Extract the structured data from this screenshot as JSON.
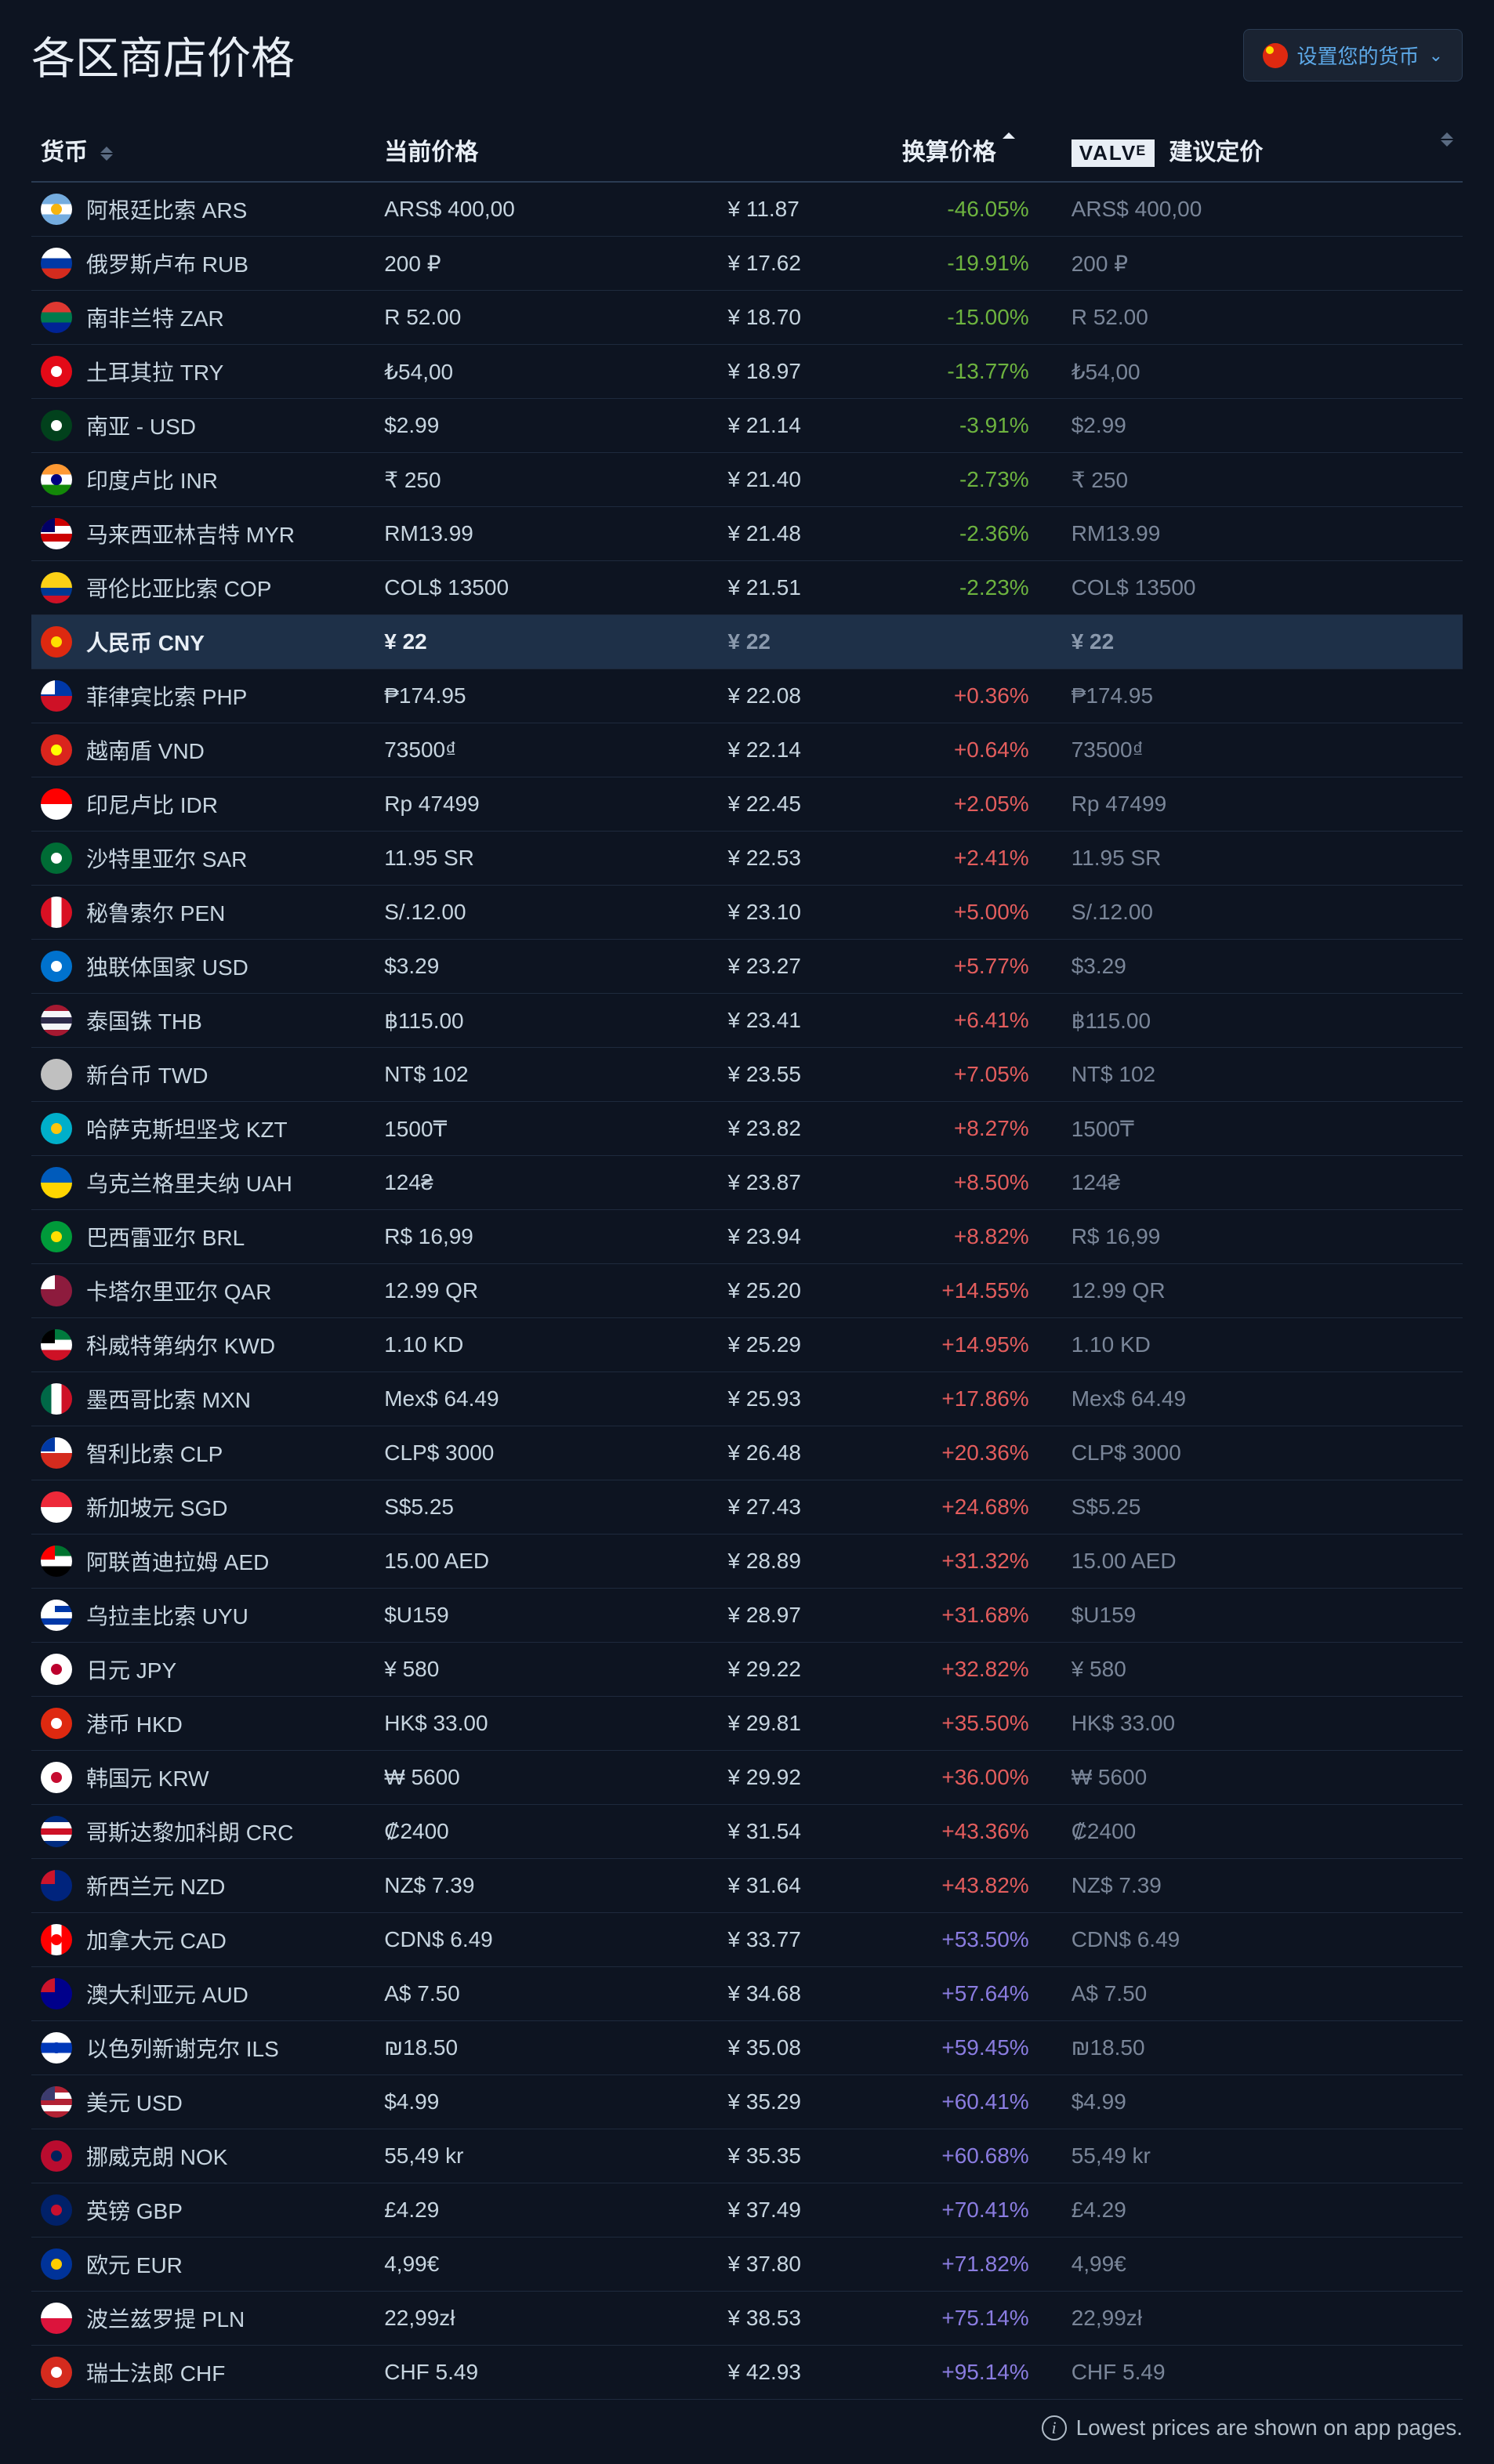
{
  "title": "各区商店价格",
  "set_currency_label": "设置您的货币",
  "set_currency_flag_colors": [
    "#de2910",
    "#ffde00"
  ],
  "valve_brand": "VALVᴱ",
  "columns": {
    "currency": "货币",
    "current_price": "当前价格",
    "converted_price": "换算价格",
    "suggested_price": "建议定价"
  },
  "footer_note": "Lowest prices are shown on app pages.",
  "highlighted_currency": "CNY",
  "rows": [
    {
      "code": "ARS",
      "name": "阿根廷比索 ARS",
      "flag": [
        "#74acdf",
        "#ffffff",
        "#74acdf"
      ],
      "flag_type": "hstripes",
      "flag_dot": "#f6b40e",
      "price": "ARS$ 400,00",
      "converted": "¥ 11.87",
      "pct": "-46.05%",
      "pct_class": "pct-negative",
      "suggested": "ARS$ 400,00"
    },
    {
      "code": "RUB",
      "name": "俄罗斯卢布 RUB",
      "flag": [
        "#ffffff",
        "#0039a6",
        "#d52b1e"
      ],
      "flag_type": "hstripes",
      "price": "200 ₽",
      "converted": "¥ 17.62",
      "pct": "-19.91%",
      "pct_class": "pct-negative",
      "suggested": "200 ₽"
    },
    {
      "code": "ZAR",
      "name": "南非兰特 ZAR",
      "flag": [
        "#de3831",
        "#007a4d",
        "#002395"
      ],
      "flag_type": "hstripes",
      "price": "R 52.00",
      "converted": "¥ 18.70",
      "pct": "-15.00%",
      "pct_class": "pct-negative",
      "suggested": "R 52.00"
    },
    {
      "code": "TRY",
      "name": "土耳其拉 TRY",
      "flag": [
        "#e30a17"
      ],
      "flag_type": "solid",
      "flag_dot": "#ffffff",
      "price": "₺54,00",
      "converted": "¥ 18.97",
      "pct": "-13.77%",
      "pct_class": "pct-negative",
      "suggested": "₺54,00"
    },
    {
      "code": "SASIA",
      "name": "南亚 - USD",
      "flag": [
        "#01411c"
      ],
      "flag_type": "solid",
      "flag_dot": "#ffffff",
      "price": "$2.99",
      "converted": "¥ 21.14",
      "pct": "-3.91%",
      "pct_class": "pct-negative",
      "suggested": "$2.99"
    },
    {
      "code": "INR",
      "name": "印度卢比 INR",
      "flag": [
        "#ff9933",
        "#ffffff",
        "#138808"
      ],
      "flag_type": "hstripes",
      "flag_dot": "#000080",
      "price": "₹ 250",
      "converted": "¥ 21.40",
      "pct": "-2.73%",
      "pct_class": "pct-negative",
      "suggested": "₹ 250"
    },
    {
      "code": "MYR",
      "name": "马来西亚林吉特 MYR",
      "flag": [
        "#cc0001",
        "#ffffff",
        "#cc0001",
        "#ffffff"
      ],
      "flag_type": "hstripes",
      "flag_corner": "#010066",
      "price": "RM13.99",
      "converted": "¥ 21.48",
      "pct": "-2.36%",
      "pct_class": "pct-negative",
      "suggested": "RM13.99"
    },
    {
      "code": "COP",
      "name": "哥伦比亚比索 COP",
      "flag": [
        "#fcd116",
        "#fcd116",
        "#003893",
        "#ce1126"
      ],
      "flag_type": "hstripes",
      "price": "COL$ 13500",
      "converted": "¥ 21.51",
      "pct": "-2.23%",
      "pct_class": "pct-negative",
      "suggested": "COL$ 13500"
    },
    {
      "code": "CNY",
      "name": "人民币 CNY",
      "flag": [
        "#de2910"
      ],
      "flag_type": "solid",
      "flag_dot": "#ffde00",
      "price": "¥ 22",
      "converted": "¥ 22",
      "pct": "",
      "pct_class": "",
      "suggested": "¥ 22",
      "highlighted": true
    },
    {
      "code": "PHP",
      "name": "菲律宾比索 PHP",
      "flag": [
        "#0038a8",
        "#ce1126"
      ],
      "flag_type": "hstripes",
      "flag_corner": "#ffffff",
      "price": "₱174.95",
      "converted": "¥ 22.08",
      "pct": "+0.36%",
      "pct_class": "pct-positive-low",
      "suggested": "₱174.95"
    },
    {
      "code": "VND",
      "name": "越南盾 VND",
      "flag": [
        "#da251d"
      ],
      "flag_type": "solid",
      "flag_dot": "#ffff00",
      "price": "73500₫",
      "converted": "¥ 22.14",
      "pct": "+0.64%",
      "pct_class": "pct-positive-low",
      "suggested": "73500₫"
    },
    {
      "code": "IDR",
      "name": "印尼卢比 IDR",
      "flag": [
        "#ff0000",
        "#ffffff"
      ],
      "flag_type": "hstripes",
      "price": "Rp 47499",
      "converted": "¥ 22.45",
      "pct": "+2.05%",
      "pct_class": "pct-positive-low",
      "suggested": "Rp 47499"
    },
    {
      "code": "SAR",
      "name": "沙特里亚尔 SAR",
      "flag": [
        "#006c35"
      ],
      "flag_type": "solid",
      "flag_dot": "#ffffff",
      "price": "11.95 SR",
      "converted": "¥ 22.53",
      "pct": "+2.41%",
      "pct_class": "pct-positive-low",
      "suggested": "11.95 SR"
    },
    {
      "code": "PEN",
      "name": "秘鲁索尔 PEN",
      "flag": [
        "#d91023",
        "#ffffff",
        "#d91023"
      ],
      "flag_type": "vstripes",
      "price": "S/.12.00",
      "converted": "¥ 23.10",
      "pct": "+5.00%",
      "pct_class": "pct-positive-low",
      "suggested": "S/.12.00"
    },
    {
      "code": "CIS",
      "name": "独联体国家 USD",
      "flag": [
        "#0072ce"
      ],
      "flag_type": "solid",
      "flag_dot": "#ffffff",
      "price": "$3.29",
      "converted": "¥ 23.27",
      "pct": "+5.77%",
      "pct_class": "pct-positive-low",
      "suggested": "$3.29"
    },
    {
      "code": "THB",
      "name": "泰国铢 THB",
      "flag": [
        "#a51931",
        "#f4f5f8",
        "#2d2a4a",
        "#f4f5f8",
        "#a51931"
      ],
      "flag_type": "hstripes",
      "price": "฿115.00",
      "converted": "¥ 23.41",
      "pct": "+6.41%",
      "pct_class": "pct-positive-low",
      "suggested": "฿115.00"
    },
    {
      "code": "TWD",
      "name": "新台币 TWD",
      "flag": [
        "#c0c0c0"
      ],
      "flag_type": "solid",
      "price": "NT$ 102",
      "converted": "¥ 23.55",
      "pct": "+7.05%",
      "pct_class": "pct-positive-low",
      "suggested": "NT$ 102"
    },
    {
      "code": "KZT",
      "name": "哈萨克斯坦坚戈 KZT",
      "flag": [
        "#00afca"
      ],
      "flag_type": "solid",
      "flag_dot": "#fec50c",
      "price": "1500₸",
      "converted": "¥ 23.82",
      "pct": "+8.27%",
      "pct_class": "pct-positive-low",
      "suggested": "1500₸"
    },
    {
      "code": "UAH",
      "name": "乌克兰格里夫纳 UAH",
      "flag": [
        "#005bbb",
        "#ffd500"
      ],
      "flag_type": "hstripes",
      "price": "124₴",
      "converted": "¥ 23.87",
      "pct": "+8.50%",
      "pct_class": "pct-positive-low",
      "suggested": "124₴"
    },
    {
      "code": "BRL",
      "name": "巴西雷亚尔 BRL",
      "flag": [
        "#009b3a"
      ],
      "flag_type": "solid",
      "flag_dot": "#fedf00",
      "price": "R$ 16,99",
      "converted": "¥ 23.94",
      "pct": "+8.82%",
      "pct_class": "pct-positive-low",
      "suggested": "R$ 16,99"
    },
    {
      "code": "QAR",
      "name": "卡塔尔里亚尔 QAR",
      "flag": [
        "#8d1b3d"
      ],
      "flag_type": "solid",
      "flag_corner": "#ffffff",
      "price": "12.99 QR",
      "converted": "¥ 25.20",
      "pct": "+14.55%",
      "pct_class": "pct-positive-low",
      "suggested": "12.99 QR"
    },
    {
      "code": "KWD",
      "name": "科威特第纳尔 KWD",
      "flag": [
        "#007a3d",
        "#ffffff",
        "#ce1126"
      ],
      "flag_type": "hstripes",
      "flag_corner": "#000000",
      "price": "1.10 KD",
      "converted": "¥ 25.29",
      "pct": "+14.95%",
      "pct_class": "pct-positive-low",
      "suggested": "1.10 KD"
    },
    {
      "code": "MXN",
      "name": "墨西哥比索 MXN",
      "flag": [
        "#006847",
        "#ffffff",
        "#ce1126"
      ],
      "flag_type": "vstripes",
      "price": "Mex$ 64.49",
      "converted": "¥ 25.93",
      "pct": "+17.86%",
      "pct_class": "pct-positive-low",
      "suggested": "Mex$ 64.49"
    },
    {
      "code": "CLP",
      "name": "智利比索 CLP",
      "flag": [
        "#ffffff",
        "#d52b1e"
      ],
      "flag_type": "hstripes",
      "flag_corner": "#0039a6",
      "price": "CLP$ 3000",
      "converted": "¥ 26.48",
      "pct": "+20.36%",
      "pct_class": "pct-positive-low",
      "suggested": "CLP$ 3000"
    },
    {
      "code": "SGD",
      "name": "新加坡元 SGD",
      "flag": [
        "#ed2939",
        "#ffffff"
      ],
      "flag_type": "hstripes",
      "price": "S$5.25",
      "converted": "¥ 27.43",
      "pct": "+24.68%",
      "pct_class": "pct-positive-low",
      "suggested": "S$5.25"
    },
    {
      "code": "AED",
      "name": "阿联酋迪拉姆 AED",
      "flag": [
        "#00732f",
        "#ffffff",
        "#000000"
      ],
      "flag_type": "hstripes",
      "flag_corner": "#ff0000",
      "price": "15.00 AED",
      "converted": "¥ 28.89",
      "pct": "+31.32%",
      "pct_class": "pct-positive-low",
      "suggested": "15.00 AED"
    },
    {
      "code": "UYU",
      "name": "乌拉圭比索 UYU",
      "flag": [
        "#ffffff",
        "#0038a8",
        "#ffffff",
        "#0038a8",
        "#ffffff"
      ],
      "flag_type": "hstripes",
      "flag_corner": "#ffffff",
      "price": "$U159",
      "converted": "¥ 28.97",
      "pct": "+31.68%",
      "pct_class": "pct-positive-low",
      "suggested": "$U159"
    },
    {
      "code": "JPY",
      "name": "日元 JPY",
      "flag": [
        "#ffffff"
      ],
      "flag_type": "solid",
      "flag_dot": "#bc002d",
      "price": "¥ 580",
      "converted": "¥ 29.22",
      "pct": "+32.82%",
      "pct_class": "pct-positive-low",
      "suggested": "¥ 580"
    },
    {
      "code": "HKD",
      "name": "港币 HKD",
      "flag": [
        "#de2910"
      ],
      "flag_type": "solid",
      "flag_dot": "#ffffff",
      "price": "HK$ 33.00",
      "converted": "¥ 29.81",
      "pct": "+35.50%",
      "pct_class": "pct-positive-low",
      "suggested": "HK$ 33.00"
    },
    {
      "code": "KRW",
      "name": "韩国元 KRW",
      "flag": [
        "#ffffff"
      ],
      "flag_type": "solid",
      "flag_dot": "#c60c30",
      "price": "₩ 5600",
      "converted": "¥ 29.92",
      "pct": "+36.00%",
      "pct_class": "pct-positive-low",
      "suggested": "₩ 5600"
    },
    {
      "code": "CRC",
      "name": "哥斯达黎加科朗 CRC",
      "flag": [
        "#002b7f",
        "#ffffff",
        "#ce1126",
        "#ffffff",
        "#002b7f"
      ],
      "flag_type": "hstripes",
      "price": "₡2400",
      "converted": "¥ 31.54",
      "pct": "+43.36%",
      "pct_class": "pct-positive-low",
      "suggested": "₡2400"
    },
    {
      "code": "NZD",
      "name": "新西兰元 NZD",
      "flag": [
        "#00247d"
      ],
      "flag_type": "solid",
      "flag_corner": "#cc142b",
      "price": "NZ$ 7.39",
      "converted": "¥ 31.64",
      "pct": "+43.82%",
      "pct_class": "pct-positive-low",
      "suggested": "NZ$ 7.39"
    },
    {
      "code": "CAD",
      "name": "加拿大元 CAD",
      "flag": [
        "#ff0000",
        "#ffffff",
        "#ff0000"
      ],
      "flag_type": "vstripes",
      "flag_dot": "#ff0000",
      "price": "CDN$ 6.49",
      "converted": "¥ 33.77",
      "pct": "+53.50%",
      "pct_class": "pct-positive-high",
      "suggested": "CDN$ 6.49"
    },
    {
      "code": "AUD",
      "name": "澳大利亚元 AUD",
      "flag": [
        "#00008b"
      ],
      "flag_type": "solid",
      "flag_corner": "#cc142b",
      "price": "A$ 7.50",
      "converted": "¥ 34.68",
      "pct": "+57.64%",
      "pct_class": "pct-positive-high",
      "suggested": "A$ 7.50"
    },
    {
      "code": "ILS",
      "name": "以色列新谢克尔 ILS",
      "flag": [
        "#ffffff",
        "#0038b8",
        "#ffffff"
      ],
      "flag_type": "hstripes",
      "flag_dot": "#0038b8",
      "price": "₪18.50",
      "converted": "¥ 35.08",
      "pct": "+59.45%",
      "pct_class": "pct-positive-high",
      "suggested": "₪18.50"
    },
    {
      "code": "USD",
      "name": "美元 USD",
      "flag": [
        "#b22234",
        "#ffffff",
        "#b22234",
        "#ffffff",
        "#b22234"
      ],
      "flag_type": "hstripes",
      "flag_corner": "#3c3b6e",
      "price": "$4.99",
      "converted": "¥ 35.29",
      "pct": "+60.41%",
      "pct_class": "pct-positive-high",
      "suggested": "$4.99"
    },
    {
      "code": "NOK",
      "name": "挪威克朗 NOK",
      "flag": [
        "#ba0c2f"
      ],
      "flag_type": "solid",
      "flag_dot": "#00205b",
      "price": "55,49 kr",
      "converted": "¥ 35.35",
      "pct": "+60.68%",
      "pct_class": "pct-positive-high",
      "suggested": "55,49 kr"
    },
    {
      "code": "GBP",
      "name": "英镑 GBP",
      "flag": [
        "#012169"
      ],
      "flag_type": "solid",
      "flag_dot": "#c8102e",
      "price": "£4.29",
      "converted": "¥ 37.49",
      "pct": "+70.41%",
      "pct_class": "pct-positive-high",
      "suggested": "£4.29"
    },
    {
      "code": "EUR",
      "name": "欧元 EUR",
      "flag": [
        "#003399"
      ],
      "flag_type": "solid",
      "flag_dot": "#ffcc00",
      "price": "4,99€",
      "converted": "¥ 37.80",
      "pct": "+71.82%",
      "pct_class": "pct-positive-high",
      "suggested": "4,99€"
    },
    {
      "code": "PLN",
      "name": "波兰兹罗提 PLN",
      "flag": [
        "#ffffff",
        "#dc143c"
      ],
      "flag_type": "hstripes",
      "price": "22,99zł",
      "converted": "¥ 38.53",
      "pct": "+75.14%",
      "pct_class": "pct-positive-high",
      "suggested": "22,99zł"
    },
    {
      "code": "CHF",
      "name": "瑞士法郎 CHF",
      "flag": [
        "#d52b1e"
      ],
      "flag_type": "solid",
      "flag_dot": "#ffffff",
      "price": "CHF 5.49",
      "converted": "¥ 42.93",
      "pct": "+95.14%",
      "pct_class": "pct-positive-high",
      "suggested": "CHF 5.49"
    }
  ]
}
